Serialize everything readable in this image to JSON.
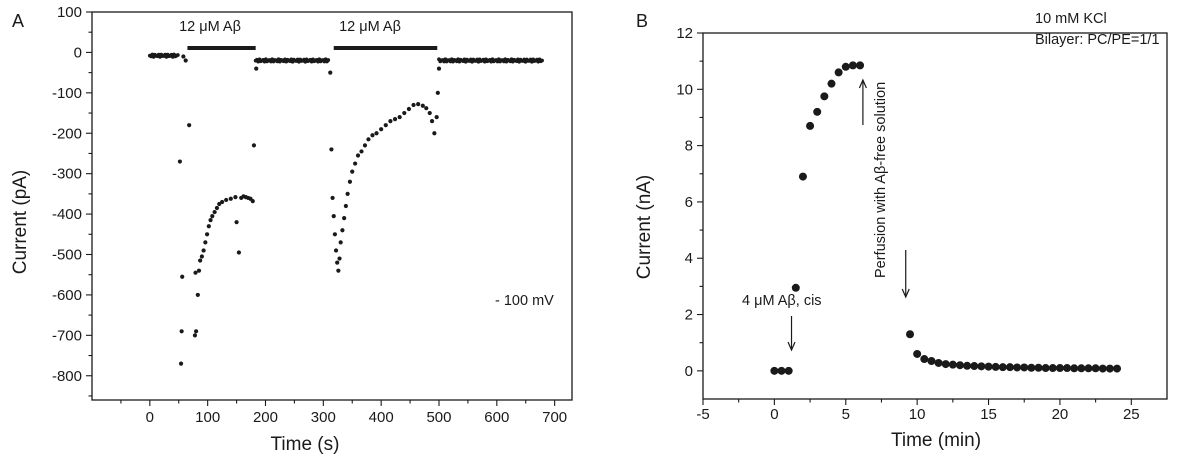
{
  "chart_data": [
    {
      "panel": "A",
      "type": "scatter",
      "xlabel": "Time (s)",
      "ylabel": "Current (pA)",
      "xlim": [
        -100,
        730
      ],
      "ylim": [
        -860,
        100
      ],
      "xticks": [
        0,
        100,
        200,
        300,
        400,
        500,
        600,
        700
      ],
      "yticks": [
        100,
        0,
        -100,
        -200,
        -300,
        -400,
        -500,
        -600,
        -700,
        -800
      ],
      "annotations": [
        {
          "text": "12 μM Aβ",
          "bar": [
            65,
            183
          ]
        },
        {
          "text": "12 μM Aβ",
          "bar": [
            318,
            497
          ]
        }
      ],
      "voltage_label": "- 100 mV",
      "baseline_segments": [
        {
          "from": 0,
          "to": 50,
          "value": -8
        },
        {
          "from": 183,
          "to": 310,
          "value": -20
        },
        {
          "from": 500,
          "to": 680,
          "value": -20
        }
      ],
      "points": [
        [
          52,
          -270
        ],
        [
          54,
          -770
        ],
        [
          55,
          -690
        ],
        [
          56,
          -555
        ],
        [
          58,
          -10
        ],
        [
          62,
          -20
        ],
        [
          68,
          -180
        ],
        [
          78,
          -700
        ],
        [
          79,
          -545
        ],
        [
          80,
          -690
        ],
        [
          83,
          -600
        ],
        [
          85,
          -540
        ],
        [
          87,
          -515
        ],
        [
          90,
          -505
        ],
        [
          93,
          -490
        ],
        [
          96,
          -470
        ],
        [
          99,
          -450
        ],
        [
          102,
          -430
        ],
        [
          105,
          -415
        ],
        [
          108,
          -405
        ],
        [
          112,
          -395
        ],
        [
          116,
          -385
        ],
        [
          120,
          -375
        ],
        [
          125,
          -370
        ],
        [
          132,
          -365
        ],
        [
          140,
          -362
        ],
        [
          148,
          -358
        ],
        [
          150,
          -420
        ],
        [
          154,
          -495
        ],
        [
          158,
          -360
        ],
        [
          162,
          -356
        ],
        [
          166,
          -358
        ],
        [
          170,
          -360
        ],
        [
          174,
          -362
        ],
        [
          178,
          -368
        ],
        [
          180,
          -230
        ],
        [
          184,
          -40
        ],
        [
          312,
          -50
        ],
        [
          314,
          -240
        ],
        [
          316,
          -360
        ],
        [
          318,
          -405
        ],
        [
          320,
          -450
        ],
        [
          322,
          -490
        ],
        [
          324,
          -520
        ],
        [
          326,
          -540
        ],
        [
          328,
          -510
        ],
        [
          330,
          -470
        ],
        [
          333,
          -440
        ],
        [
          336,
          -410
        ],
        [
          339,
          -380
        ],
        [
          342,
          -350
        ],
        [
          346,
          -320
        ],
        [
          350,
          -295
        ],
        [
          355,
          -275
        ],
        [
          360,
          -255
        ],
        [
          366,
          -245
        ],
        [
          372,
          -230
        ],
        [
          378,
          -215
        ],
        [
          385,
          -205
        ],
        [
          392,
          -200
        ],
        [
          400,
          -190
        ],
        [
          408,
          -180
        ],
        [
          416,
          -170
        ],
        [
          424,
          -165
        ],
        [
          432,
          -160
        ],
        [
          440,
          -150
        ],
        [
          448,
          -140
        ],
        [
          456,
          -130
        ],
        [
          464,
          -128
        ],
        [
          472,
          -132
        ],
        [
          478,
          -138
        ],
        [
          484,
          -150
        ],
        [
          488,
          -170
        ],
        [
          492,
          -200
        ],
        [
          496,
          -160
        ],
        [
          498,
          -100
        ],
        [
          500,
          -40
        ]
      ]
    },
    {
      "panel": "B",
      "type": "scatter",
      "xlabel": "Time (min)",
      "ylabel": "Current (nA)",
      "xlim": [
        -5,
        27.5
      ],
      "ylim": [
        -1,
        12
      ],
      "xticks": [
        -5,
        0,
        5,
        10,
        15,
        20,
        25
      ],
      "yticks": [
        0,
        2,
        4,
        6,
        8,
        10,
        12
      ],
      "annotations": [
        {
          "text": "4 μM Aβ, cis",
          "arrow_x": 1.2
        },
        {
          "text": "Perfusion with Aβ-free solution",
          "arrow_x": 9.2
        },
        {
          "text": "10 mM KCl"
        },
        {
          "text": "Bilayer: PC/PE=1/1"
        }
      ],
      "points": [
        [
          0,
          0
        ],
        [
          0.5,
          0
        ],
        [
          1,
          0
        ],
        [
          1.5,
          2.95
        ],
        [
          2,
          6.9
        ],
        [
          2.5,
          8.7
        ],
        [
          3,
          9.2
        ],
        [
          3.5,
          9.75
        ],
        [
          4,
          10.2
        ],
        [
          4.5,
          10.6
        ],
        [
          5,
          10.8
        ],
        [
          5.5,
          10.85
        ],
        [
          6,
          10.85
        ],
        [
          9.5,
          1.3
        ],
        [
          10,
          0.6
        ],
        [
          10.5,
          0.42
        ],
        [
          11,
          0.35
        ],
        [
          11.5,
          0.28
        ],
        [
          12,
          0.24
        ],
        [
          12.5,
          0.22
        ],
        [
          13,
          0.2
        ],
        [
          13.5,
          0.18
        ],
        [
          14,
          0.17
        ],
        [
          14.5,
          0.16
        ],
        [
          15,
          0.15
        ],
        [
          15.5,
          0.14
        ],
        [
          16,
          0.13
        ],
        [
          16.5,
          0.13
        ],
        [
          17,
          0.12
        ],
        [
          17.5,
          0.12
        ],
        [
          18,
          0.11
        ],
        [
          18.5,
          0.11
        ],
        [
          19,
          0.1
        ],
        [
          19.5,
          0.1
        ],
        [
          20,
          0.1
        ],
        [
          20.5,
          0.1
        ],
        [
          21,
          0.09
        ],
        [
          21.5,
          0.09
        ],
        [
          22,
          0.09
        ],
        [
          22.5,
          0.09
        ],
        [
          23,
          0.08
        ],
        [
          23.5,
          0.08
        ],
        [
          24,
          0.08
        ]
      ]
    }
  ],
  "labels": {
    "panelA": "A",
    "panelB": "B",
    "a_xlabel": "Time (s)",
    "a_ylabel": "Current (pA)",
    "a_bar1": "12 μM Aβ",
    "a_bar2": "12 μM Aβ",
    "a_voltage": "- 100 mV",
    "b_xlabel": "Time (min)",
    "b_ylabel": "Current (nA)",
    "b_kcl": "10 mM KCl",
    "b_bilayer": "Bilayer: PC/PE=1/1",
    "b_arrow1": "4 μM Aβ, cis",
    "b_arrow2": "Perfusion with Aβ-free solution"
  }
}
